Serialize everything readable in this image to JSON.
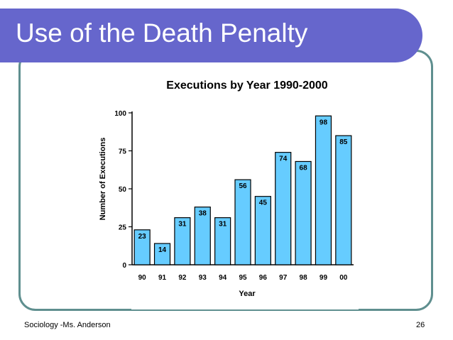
{
  "slide": {
    "title": "Use of the Death Penalty",
    "footer": "Sociology -Ms. Anderson",
    "page_number": "26"
  },
  "colors": {
    "title_bar": "#6666cc",
    "frame": "#5f8f8f",
    "bar_fill": "#66ccff"
  },
  "chart_data": {
    "type": "bar",
    "title": "Executions by Year  1990-2000",
    "xlabel": "Year",
    "ylabel": "Number of Executions",
    "categories": [
      "90",
      "91",
      "92",
      "93",
      "94",
      "95",
      "96",
      "97",
      "98",
      "99",
      "00"
    ],
    "values": [
      23,
      14,
      31,
      38,
      31,
      56,
      45,
      74,
      68,
      98,
      85
    ],
    "ylim": [
      0,
      100
    ],
    "yticks": [
      0,
      25,
      50,
      75,
      100
    ],
    "grid": false,
    "legend": "none"
  }
}
